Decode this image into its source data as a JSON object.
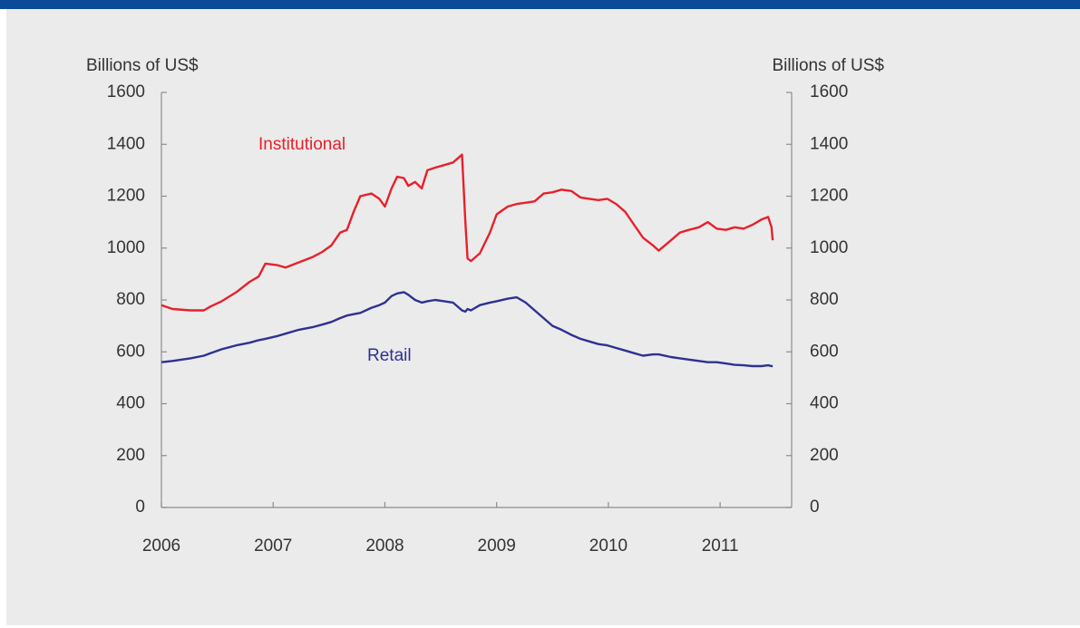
{
  "chart_data": {
    "type": "line",
    "y_label": "Billions of US$",
    "y2_label": "Billions of US$",
    "annotations": [
      {
        "text": "Institutional",
        "series": 0
      },
      {
        "text": "Retail",
        "series": 1
      }
    ],
    "x": [
      2006.0,
      2006.1,
      2006.26,
      2006.38,
      2006.44,
      2006.54,
      2006.67,
      2006.79,
      2006.87,
      2006.93,
      2007.03,
      2007.11,
      2007.23,
      2007.35,
      2007.44,
      2007.52,
      2007.6,
      2007.66,
      2007.72,
      2007.78,
      2007.88,
      2007.95,
      2008.0,
      2008.06,
      2008.11,
      2008.17,
      2008.21,
      2008.27,
      2008.33,
      2008.38,
      2008.45,
      2008.53,
      2008.61,
      2008.69,
      2008.72,
      2008.74,
      2008.77,
      2008.85,
      2008.94,
      2009.0,
      2009.1,
      2009.18,
      2009.26,
      2009.34,
      2009.42,
      2009.5,
      2009.58,
      2009.67,
      2009.75,
      2009.83,
      2009.91,
      2009.99,
      2010.07,
      2010.15,
      2010.23,
      2010.31,
      2010.4,
      2010.45,
      2010.56,
      2010.64,
      2010.72,
      2010.81,
      2010.89,
      2010.97,
      2011.05,
      2011.13,
      2011.21,
      2011.29,
      2011.37,
      2011.43,
      2011.46,
      2011.47
    ],
    "series": [
      {
        "name": "Institutional",
        "color": "#e8202a",
        "values": [
          780,
          765,
          760,
          760,
          775,
          795,
          830,
          870,
          890,
          940,
          935,
          925,
          945,
          965,
          985,
          1010,
          1060,
          1070,
          1140,
          1200,
          1210,
          1190,
          1160,
          1230,
          1275,
          1270,
          1240,
          1255,
          1230,
          1300,
          1310,
          1320,
          1330,
          1360,
          1100,
          960,
          950,
          980,
          1060,
          1130,
          1160,
          1170,
          1175,
          1180,
          1210,
          1215,
          1225,
          1220,
          1195,
          1190,
          1185,
          1190,
          1170,
          1140,
          1090,
          1040,
          1010,
          990,
          1030,
          1060,
          1070,
          1080,
          1100,
          1075,
          1070,
          1080,
          1075,
          1090,
          1110,
          1120,
          1080,
          1030
        ]
      },
      {
        "name": "Retail",
        "color": "#2e3192",
        "values": [
          560,
          565,
          575,
          585,
          595,
          610,
          625,
          635,
          645,
          650,
          660,
          670,
          685,
          695,
          705,
          715,
          730,
          740,
          745,
          750,
          770,
          780,
          790,
          815,
          825,
          830,
          820,
          800,
          790,
          795,
          800,
          795,
          790,
          760,
          755,
          765,
          760,
          780,
          790,
          795,
          805,
          810,
          790,
          760,
          730,
          700,
          685,
          665,
          650,
          640,
          630,
          625,
          615,
          605,
          595,
          585,
          590,
          590,
          580,
          575,
          570,
          565,
          560,
          560,
          555,
          550,
          548,
          545,
          545,
          548,
          545,
          545
        ]
      }
    ],
    "xlim": [
      2006,
      2011.64
    ],
    "xticks": [
      2006,
      2007,
      2008,
      2009,
      2010,
      2011
    ],
    "ylim": [
      0,
      1600
    ],
    "yticks": [
      0,
      200,
      400,
      600,
      800,
      1000,
      1200,
      1400,
      1600
    ],
    "y2lim": [
      0,
      1600
    ],
    "y2ticks": [
      0,
      200,
      400,
      600,
      800,
      1000,
      1200,
      1400,
      1600
    ],
    "grid": false
  }
}
